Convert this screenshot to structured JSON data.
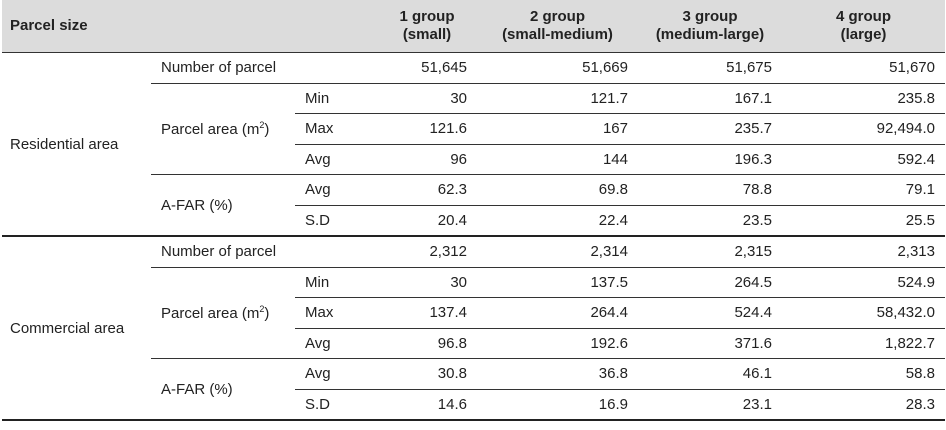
{
  "header": {
    "parcel_size": "Parcel size",
    "groups": [
      {
        "line1": "1 group",
        "line2": "(small)"
      },
      {
        "line1": "2 group",
        "line2": "(small-medium)"
      },
      {
        "line1": "3 group",
        "line2": "(medium-large)"
      },
      {
        "line1": "4 group",
        "line2": "(large)"
      }
    ]
  },
  "labels": {
    "number_of_parcel": "Number of parcel",
    "parcel_area": "Parcel area (m",
    "sup": "2",
    "close": ")",
    "afar": "A-FAR (%)",
    "min": "Min",
    "max": "Max",
    "avg": "Avg",
    "sd": "S.D"
  },
  "residential": {
    "name": "Residential area",
    "number_of_parcel": [
      "51,645",
      "51,669",
      "51,675",
      "51,670"
    ],
    "area_min": [
      "30",
      "121.7",
      "167.1",
      "235.8"
    ],
    "area_max": [
      "121.6",
      "167",
      "235.7",
      "92,494.0"
    ],
    "area_avg": [
      "96",
      "144",
      "196.3",
      "592.4"
    ],
    "afar_avg": [
      "62.3",
      "69.8",
      "78.8",
      "79.1"
    ],
    "afar_sd": [
      "20.4",
      "22.4",
      "23.5",
      "25.5"
    ]
  },
  "commercial": {
    "name": "Commercial area",
    "number_of_parcel": [
      "2,312",
      "2,314",
      "2,315",
      "2,313"
    ],
    "area_min": [
      "30",
      "137.5",
      "264.5",
      "524.9"
    ],
    "area_max": [
      "137.4",
      "264.4",
      "524.4",
      "58,432.0"
    ],
    "area_avg": [
      "96.8",
      "192.6",
      "371.6",
      "1,822.7"
    ],
    "afar_avg": [
      "30.8",
      "36.8",
      "46.1",
      "58.8"
    ],
    "afar_sd": [
      "14.6",
      "16.9",
      "23.1",
      "28.3"
    ]
  }
}
